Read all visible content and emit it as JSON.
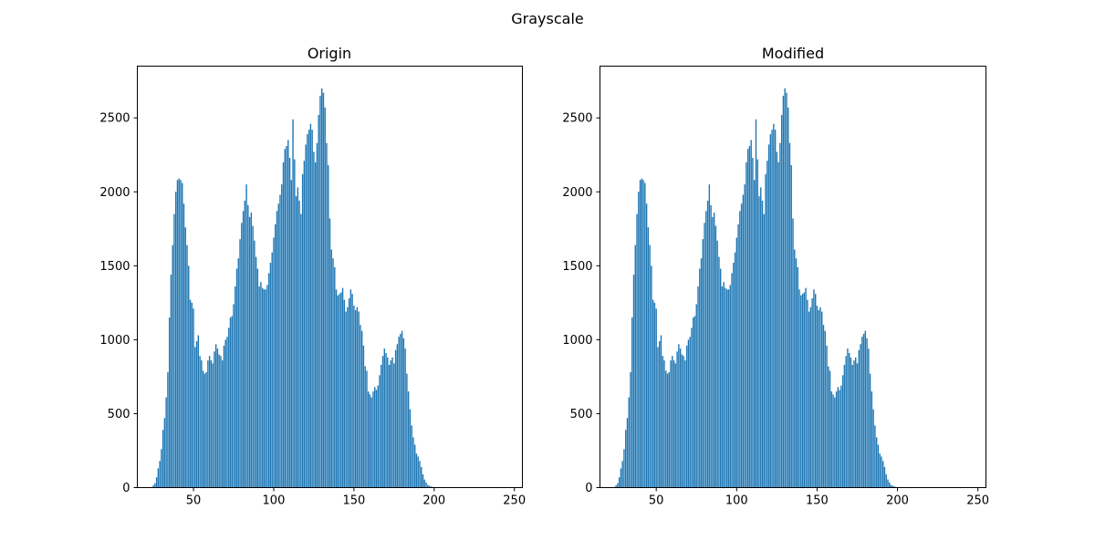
{
  "figure": {
    "suptitle": "Grayscale"
  },
  "colors": {
    "bar": "#1f77b4",
    "axes": "#000000",
    "background": "#ffffff"
  },
  "chart_data": [
    {
      "type": "bar",
      "title": "Origin",
      "xlabel": "",
      "ylabel": "",
      "xlim": [
        15,
        255
      ],
      "ylim": [
        0,
        2850
      ],
      "xticks": [
        50,
        100,
        150,
        200,
        250
      ],
      "yticks": [
        0,
        500,
        1000,
        1500,
        2000,
        2500
      ],
      "grid": false,
      "x_start": 24,
      "values": [
        4,
        15,
        30,
        70,
        130,
        180,
        260,
        390,
        470,
        610,
        780,
        1150,
        1440,
        1640,
        1850,
        2000,
        2080,
        2090,
        2080,
        2060,
        1920,
        1760,
        1640,
        1500,
        1270,
        1250,
        1210,
        950,
        990,
        1030,
        890,
        860,
        790,
        770,
        780,
        860,
        890,
        860,
        840,
        920,
        970,
        940,
        900,
        890,
        860,
        960,
        1000,
        1020,
        1080,
        1150,
        1160,
        1240,
        1360,
        1480,
        1550,
        1680,
        1790,
        1870,
        1940,
        2050,
        1910,
        1830,
        1860,
        1770,
        1670,
        1560,
        1480,
        1360,
        1390,
        1350,
        1340,
        1340,
        1370,
        1450,
        1520,
        1590,
        1690,
        1780,
        1870,
        1920,
        1980,
        2050,
        2200,
        2290,
        2310,
        2350,
        2230,
        2080,
        2490,
        2220,
        1970,
        2030,
        1940,
        1850,
        2120,
        2210,
        2320,
        2390,
        2420,
        2460,
        2420,
        2270,
        2200,
        2330,
        2520,
        2650,
        2700,
        2670,
        2570,
        2330,
        2180,
        1820,
        1610,
        1550,
        1490,
        1340,
        1300,
        1310,
        1320,
        1350,
        1270,
        1190,
        1220,
        1280,
        1340,
        1310,
        1230,
        1200,
        1220,
        1190,
        1100,
        1060,
        960,
        820,
        790,
        650,
        630,
        610,
        650,
        680,
        660,
        690,
        760,
        830,
        890,
        940,
        910,
        880,
        830,
        860,
        880,
        840,
        930,
        970,
        1020,
        1040,
        1060,
        1010,
        940,
        770,
        650,
        530,
        420,
        340,
        290,
        230,
        210,
        180,
        140,
        90,
        55,
        35,
        18,
        12,
        8,
        5,
        3,
        2,
        1,
        1
      ]
    },
    {
      "type": "bar",
      "title": "Modified",
      "xlabel": "",
      "ylabel": "",
      "xlim": [
        15,
        255
      ],
      "ylim": [
        0,
        2850
      ],
      "xticks": [
        50,
        100,
        150,
        200,
        250
      ],
      "yticks": [
        0,
        500,
        1000,
        1500,
        2000,
        2500
      ],
      "grid": false,
      "x_start": 24,
      "values": [
        4,
        15,
        30,
        70,
        130,
        180,
        260,
        390,
        470,
        610,
        780,
        1150,
        1440,
        1640,
        1850,
        2000,
        2080,
        2090,
        2080,
        2060,
        1920,
        1760,
        1640,
        1500,
        1270,
        1250,
        1210,
        950,
        990,
        1030,
        890,
        860,
        790,
        770,
        780,
        860,
        890,
        860,
        840,
        920,
        970,
        940,
        900,
        890,
        860,
        960,
        1000,
        1020,
        1080,
        1150,
        1160,
        1240,
        1360,
        1480,
        1550,
        1680,
        1790,
        1870,
        1940,
        2050,
        1910,
        1830,
        1860,
        1770,
        1670,
        1560,
        1480,
        1360,
        1390,
        1350,
        1340,
        1340,
        1370,
        1450,
        1520,
        1590,
        1690,
        1780,
        1870,
        1920,
        1980,
        2050,
        2200,
        2290,
        2310,
        2350,
        2230,
        2080,
        2490,
        2220,
        1970,
        2030,
        1940,
        1850,
        2120,
        2210,
        2320,
        2390,
        2420,
        2460,
        2420,
        2270,
        2200,
        2330,
        2520,
        2650,
        2700,
        2670,
        2570,
        2330,
        2180,
        1820,
        1610,
        1550,
        1490,
        1340,
        1300,
        1310,
        1320,
        1350,
        1270,
        1190,
        1220,
        1280,
        1340,
        1310,
        1230,
        1200,
        1220,
        1190,
        1100,
        1060,
        960,
        820,
        790,
        650,
        630,
        610,
        650,
        680,
        660,
        690,
        760,
        830,
        890,
        940,
        910,
        880,
        830,
        860,
        880,
        840,
        930,
        970,
        1020,
        1040,
        1060,
        1010,
        940,
        770,
        650,
        530,
        420,
        340,
        290,
        230,
        210,
        180,
        140,
        90,
        55,
        35,
        18,
        12,
        8,
        5,
        3,
        2,
        1,
        1
      ]
    }
  ]
}
